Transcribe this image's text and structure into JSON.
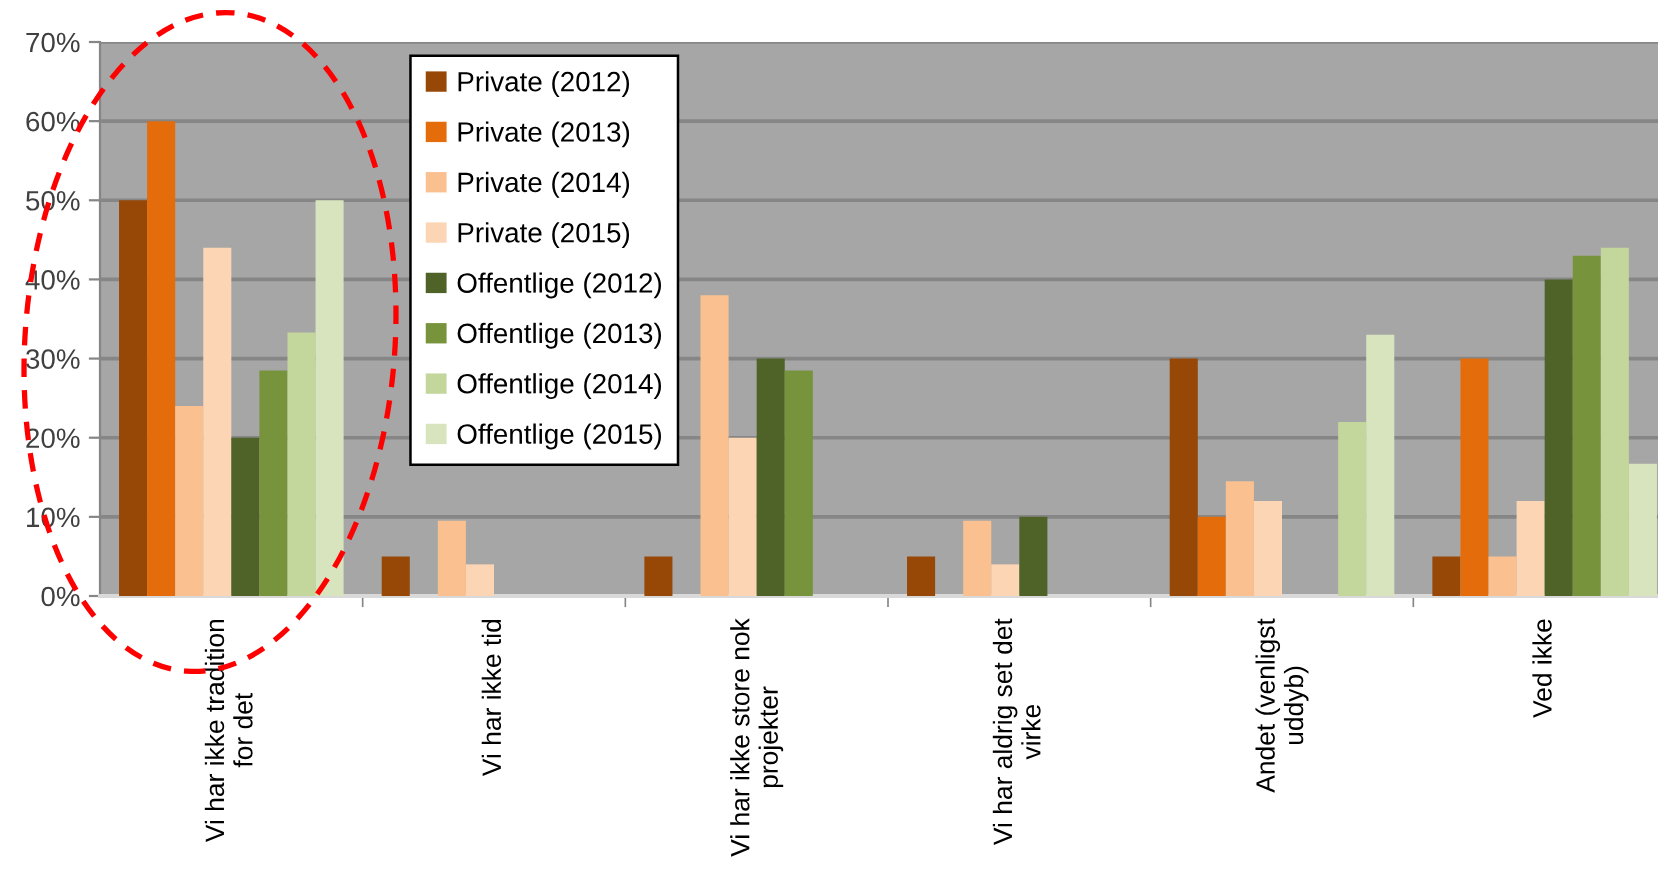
{
  "chart_data": {
    "type": "bar",
    "categories": [
      "Vi har ikke tradition\nfor det",
      "Vi har ikke tid",
      "Vi har ikke store nok\nprojekter",
      "Vi har aldrig set det\nvirke",
      "Andet (venligst\nuddyb)",
      "Ved ikke"
    ],
    "series": [
      {
        "name": "Private (2012)",
        "color": "#974706",
        "values": [
          50,
          5,
          5,
          5,
          30,
          5
        ]
      },
      {
        "name": "Private (2013)",
        "color": "#e46c0a",
        "values": [
          60,
          null,
          null,
          null,
          10,
          30
        ]
      },
      {
        "name": "Private (2014)",
        "color": "#fac090",
        "values": [
          24,
          9.5,
          38,
          9.5,
          14.5,
          5
        ]
      },
      {
        "name": "Private (2015)",
        "color": "#fcd5b5",
        "values": [
          44,
          4,
          20,
          4,
          12,
          12
        ]
      },
      {
        "name": "Offentlige (2012)",
        "color": "#4f6228",
        "values": [
          20,
          null,
          30,
          10,
          null,
          40
        ]
      },
      {
        "name": "Offentlige (2013)",
        "color": "#77933c",
        "values": [
          28.5,
          null,
          28.5,
          null,
          null,
          43
        ]
      },
      {
        "name": "Offentlige (2014)",
        "color": "#c3d69b",
        "values": [
          33.3,
          null,
          null,
          null,
          22,
          44
        ]
      },
      {
        "name": "Offentlige (2015)",
        "color": "#d7e4bd",
        "values": [
          50,
          null,
          null,
          null,
          33,
          16.7
        ]
      }
    ],
    "ylim": [
      0,
      70
    ],
    "yticks": [
      {
        "value": 0,
        "label": "0%"
      },
      {
        "value": 10,
        "label": "10%"
      },
      {
        "value": 20,
        "label": "20%"
      },
      {
        "value": 30,
        "label": "30%"
      },
      {
        "value": 40,
        "label": "40%"
      },
      {
        "value": 50,
        "label": "50%"
      },
      {
        "value": 60,
        "label": "60%"
      },
      {
        "value": 70,
        "label": "70%"
      }
    ],
    "grid": "y",
    "legend": "top left"
  }
}
